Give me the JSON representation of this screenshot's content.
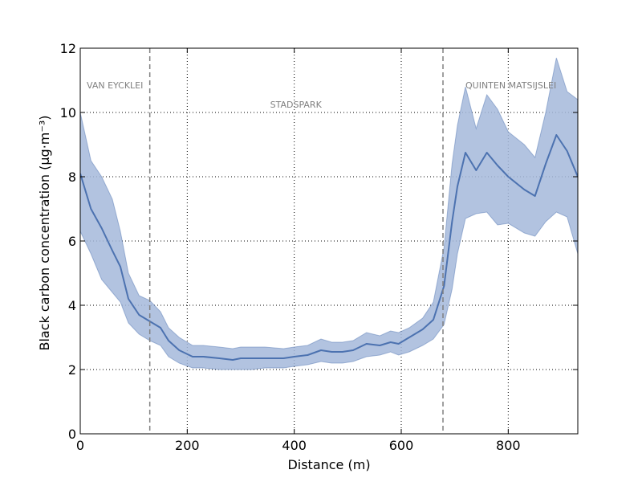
{
  "chart_data": {
    "type": "line",
    "xlabel": "Distance (m)",
    "ylabel": "Black carbon concentration (μg·m⁻³)",
    "xlim": [
      0,
      930
    ],
    "ylim": [
      0,
      12
    ],
    "xticks": [
      0,
      200,
      400,
      600,
      800
    ],
    "yticks": [
      0,
      2,
      4,
      6,
      8,
      10,
      12
    ],
    "grid": "dotted",
    "colors": {
      "line": "#4c72b0",
      "band": "#a5b8da",
      "vline": "#808080"
    },
    "series": [
      {
        "x": [
          0,
          20,
          40,
          60,
          75,
          90,
          110,
          130,
          150,
          165,
          185,
          210,
          230,
          260,
          285,
          300,
          320,
          345,
          380,
          400,
          425,
          450,
          470,
          490,
          510,
          535,
          560,
          580,
          595,
          615,
          640,
          660,
          680,
          695,
          705,
          720,
          740,
          760,
          780,
          800,
          830,
          850,
          870,
          890,
          910,
          930
        ],
        "y": [
          8.1,
          7.0,
          6.4,
          5.7,
          5.2,
          4.2,
          3.7,
          3.5,
          3.3,
          2.9,
          2.6,
          2.4,
          2.4,
          2.35,
          2.3,
          2.35,
          2.35,
          2.35,
          2.35,
          2.4,
          2.45,
          2.6,
          2.55,
          2.55,
          2.6,
          2.8,
          2.75,
          2.85,
          2.8,
          3.0,
          3.25,
          3.55,
          4.6,
          6.6,
          7.7,
          8.75,
          8.2,
          8.75,
          8.35,
          8.0,
          7.6,
          7.4,
          8.4,
          9.3,
          8.8,
          8.0
        ],
        "upper": [
          10.0,
          8.5,
          8.0,
          7.3,
          6.3,
          5.0,
          4.3,
          4.15,
          3.8,
          3.3,
          3.0,
          2.75,
          2.75,
          2.7,
          2.65,
          2.7,
          2.7,
          2.7,
          2.65,
          2.7,
          2.75,
          2.95,
          2.85,
          2.85,
          2.9,
          3.15,
          3.05,
          3.2,
          3.15,
          3.3,
          3.6,
          4.1,
          5.8,
          8.4,
          9.6,
          10.8,
          9.5,
          10.55,
          10.1,
          9.4,
          9.0,
          8.6,
          10.0,
          11.7,
          10.65,
          10.4
        ],
        "lower": [
          6.3,
          5.6,
          4.8,
          4.4,
          4.1,
          3.45,
          3.1,
          2.9,
          2.75,
          2.4,
          2.2,
          2.05,
          2.05,
          2.0,
          2.0,
          2.0,
          2.0,
          2.05,
          2.05,
          2.1,
          2.15,
          2.25,
          2.2,
          2.2,
          2.25,
          2.4,
          2.45,
          2.55,
          2.45,
          2.55,
          2.75,
          2.95,
          3.4,
          4.5,
          5.6,
          6.7,
          6.85,
          6.9,
          6.5,
          6.55,
          6.25,
          6.15,
          6.6,
          6.9,
          6.75,
          5.6
        ]
      }
    ],
    "vlines": [
      130,
      678
    ],
    "annotations": [
      {
        "text": "VAN EYCKLEI",
        "x": 12,
        "y": 10.85
      },
      {
        "text": "STADSPARK",
        "x": 355,
        "y": 10.25
      },
      {
        "text": "QUINTEN MATSIJSLEI",
        "x": 720,
        "y": 10.85
      }
    ]
  }
}
